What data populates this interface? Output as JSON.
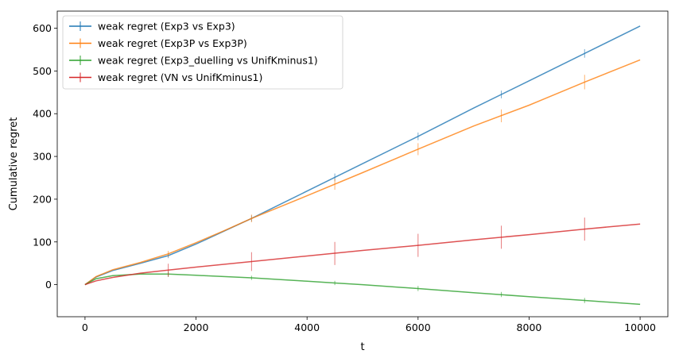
{
  "chart_data": {
    "type": "line",
    "xlabel": "t",
    "ylabel": "Cumulative regret",
    "xlim": [
      -500,
      10500
    ],
    "ylim": [
      -75,
      640
    ],
    "xticks": [
      0,
      2000,
      4000,
      6000,
      8000,
      10000
    ],
    "yticks": [
      0,
      100,
      200,
      300,
      400,
      500,
      600
    ],
    "grid": false,
    "legend_position": "top-left",
    "series": [
      {
        "name": "weak regret (Exp3 vs Exp3)",
        "color": "#1f77b4",
        "x": [
          0,
          200,
          500,
          1000,
          1500,
          2000,
          2500,
          3000,
          4000,
          5000,
          6000,
          7000,
          8000,
          9000,
          10000
        ],
        "y": [
          0,
          18,
          33,
          50,
          68,
          95,
          125,
          155,
          219,
          283,
          347,
          413,
          477,
          541,
          605
        ],
        "errorbars": [
          {
            "x": 1500,
            "y": 68,
            "err": 6
          },
          {
            "x": 3000,
            "y": 155,
            "err": 7
          },
          {
            "x": 4500,
            "y": 251,
            "err": 9
          },
          {
            "x": 6000,
            "y": 347,
            "err": 9
          },
          {
            "x": 7500,
            "y": 445,
            "err": 9
          },
          {
            "x": 9000,
            "y": 541,
            "err": 10
          }
        ]
      },
      {
        "name": "weak regret (Exp3P vs Exp3P)",
        "color": "#ff7f0e",
        "x": [
          0,
          200,
          500,
          1000,
          1500,
          2000,
          2500,
          3000,
          4000,
          5000,
          6000,
          7000,
          8000,
          9000,
          10000
        ],
        "y": [
          0,
          19,
          35,
          52,
          72,
          98,
          126,
          155,
          208,
          262,
          317,
          371,
          420,
          474,
          526
        ],
        "errorbars": [
          {
            "x": 1500,
            "y": 72,
            "err": 7
          },
          {
            "x": 3000,
            "y": 155,
            "err": 9
          },
          {
            "x": 4500,
            "y": 235,
            "err": 13
          },
          {
            "x": 6000,
            "y": 317,
            "err": 14
          },
          {
            "x": 7500,
            "y": 395,
            "err": 15
          },
          {
            "x": 9000,
            "y": 474,
            "err": 17
          }
        ]
      },
      {
        "name": "weak regret (Exp3_duelling vs UnifKminus1)",
        "color": "#2ca02c",
        "x": [
          0,
          200,
          500,
          1000,
          1500,
          2000,
          3000,
          4000,
          4500,
          5000,
          6000,
          7000,
          8000,
          9000,
          10000
        ],
        "y": [
          0,
          14,
          21,
          25,
          25,
          22,
          16,
          8,
          4,
          0,
          -9,
          -19,
          -28,
          -37,
          -46
        ],
        "errorbars": [
          {
            "x": 1500,
            "y": 25,
            "err": 7
          },
          {
            "x": 3000,
            "y": 16,
            "err": 5
          },
          {
            "x": 4500,
            "y": 4,
            "err": 5
          },
          {
            "x": 6000,
            "y": -9,
            "err": 6
          },
          {
            "x": 7500,
            "y": -23,
            "err": 6
          },
          {
            "x": 9000,
            "y": -37,
            "err": 6
          }
        ]
      },
      {
        "name": "weak regret (VN vs UnifKminus1)",
        "color": "#d62728",
        "x": [
          0,
          200,
          500,
          1000,
          1500,
          2000,
          3000,
          4000,
          5000,
          6000,
          7000,
          8000,
          9000,
          10000
        ],
        "y": [
          0,
          9,
          17,
          27,
          34,
          41,
          54,
          67,
          80,
          92,
          105,
          117,
          130,
          142
        ],
        "errorbars": [
          {
            "x": 1500,
            "y": 34,
            "err": 15
          },
          {
            "x": 3000,
            "y": 54,
            "err": 22
          },
          {
            "x": 4500,
            "y": 73,
            "err": 27
          },
          {
            "x": 6000,
            "y": 92,
            "err": 27
          },
          {
            "x": 7500,
            "y": 111,
            "err": 27
          },
          {
            "x": 9000,
            "y": 130,
            "err": 27
          }
        ]
      }
    ]
  }
}
